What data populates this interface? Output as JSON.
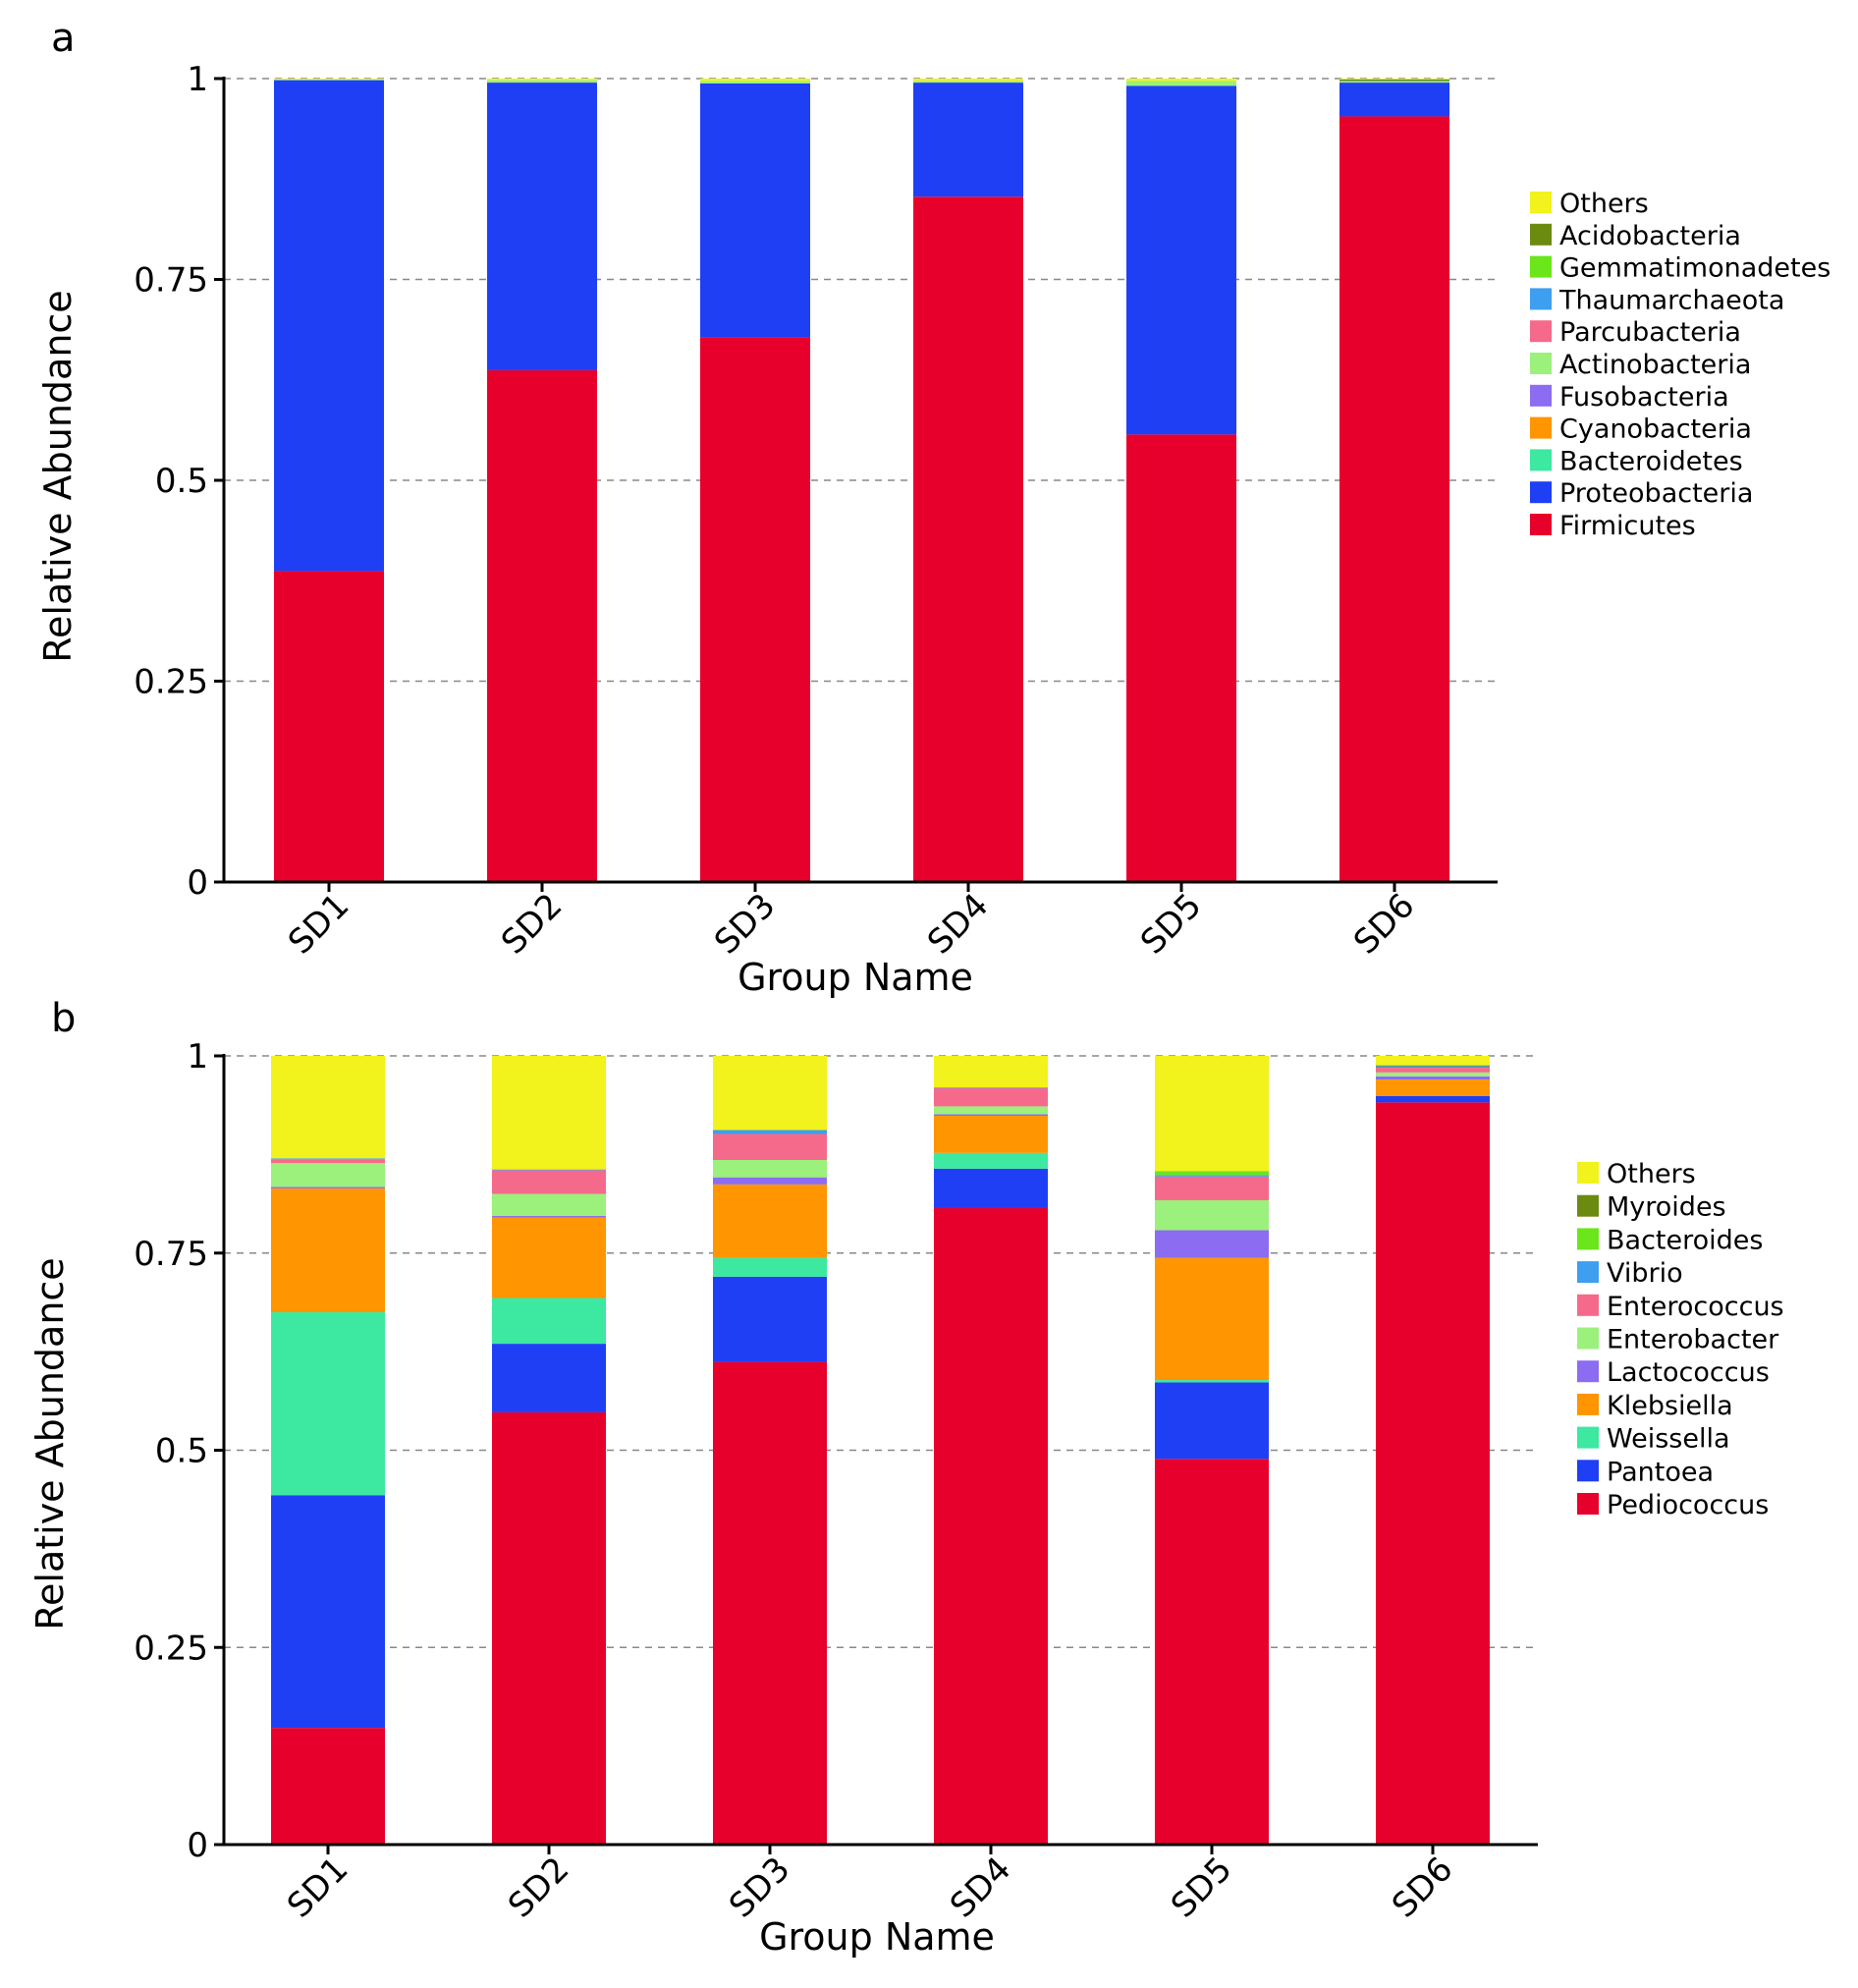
{
  "chart_data": [
    {
      "type": "bar",
      "stacked": true,
      "panel_label": "a",
      "xlabel": "Group Name",
      "ylabel": "Relative Abundance",
      "ylim": [
        0,
        1
      ],
      "yticks": [
        "0",
        "0.25",
        "0.5",
        "0.75",
        "1"
      ],
      "grid": true,
      "legend_position": "right",
      "categories": [
        "SD1",
        "SD2",
        "SD3",
        "SD4",
        "SD5",
        "SD6"
      ],
      "series": [
        {
          "name": "Firmicutes",
          "color": "#e8002d",
          "values": [
            0.387,
            0.637,
            0.678,
            0.853,
            0.557,
            0.953
          ]
        },
        {
          "name": "Proteobacteria",
          "color": "#1f3ff5",
          "values": [
            0.611,
            0.358,
            0.316,
            0.142,
            0.434,
            0.042
          ]
        },
        {
          "name": "Bacteroidetes",
          "color": "#3de8a0",
          "values": [
            0.0,
            0.0,
            0.0,
            0.0,
            0.0,
            0.0
          ]
        },
        {
          "name": "Cyanobacteria",
          "color": "#ff9500",
          "values": [
            0.0,
            0.0,
            0.0,
            0.0,
            0.0,
            0.0
          ]
        },
        {
          "name": "Fusobacteria",
          "color": "#8c6cf0",
          "values": [
            0.0,
            0.0,
            0.0,
            0.0,
            0.0,
            0.0
          ]
        },
        {
          "name": "Actinobacteria",
          "color": "#9cf07c",
          "values": [
            0.001,
            0.003,
            0.003,
            0.002,
            0.006,
            0.002
          ]
        },
        {
          "name": "Parcubacteria",
          "color": "#f56a8a",
          "values": [
            0.0,
            0.0,
            0.0,
            0.0,
            0.0,
            0.0
          ]
        },
        {
          "name": "Thaumarchaeota",
          "color": "#3e9ef0",
          "values": [
            0.0,
            0.0,
            0.0,
            0.0,
            0.0,
            0.0
          ]
        },
        {
          "name": "Gemmatimonadetes",
          "color": "#6ae61a",
          "values": [
            0.0,
            0.0,
            0.0,
            0.0,
            0.0,
            0.0
          ]
        },
        {
          "name": "Acidobacteria",
          "color": "#6b8a10",
          "values": [
            0.0,
            0.0,
            0.0,
            0.0,
            0.0,
            0.002
          ]
        },
        {
          "name": "Others",
          "color": "#f2f21c",
          "values": [
            0.001,
            0.002,
            0.003,
            0.003,
            0.003,
            0.001
          ]
        }
      ]
    },
    {
      "type": "bar",
      "stacked": true,
      "panel_label": "b",
      "xlabel": "Group Name",
      "ylabel": "Relative Abundance",
      "ylim": [
        0,
        1
      ],
      "yticks": [
        "0",
        "0.25",
        "0.5",
        "0.75",
        "1"
      ],
      "grid": true,
      "legend_position": "right",
      "categories": [
        "SD1",
        "SD2",
        "SD3",
        "SD4",
        "SD5",
        "SD6"
      ],
      "series": [
        {
          "name": "Pediococcus",
          "color": "#e8002d",
          "values": [
            0.148,
            0.548,
            0.612,
            0.807,
            0.489,
            0.941
          ]
        },
        {
          "name": "Pantoea",
          "color": "#1f3ff5",
          "values": [
            0.295,
            0.087,
            0.108,
            0.05,
            0.097,
            0.008
          ]
        },
        {
          "name": "Weissella",
          "color": "#3de8a0",
          "values": [
            0.232,
            0.058,
            0.024,
            0.02,
            0.003,
            0.0
          ]
        },
        {
          "name": "Klebsiella",
          "color": "#ff9500",
          "values": [
            0.157,
            0.102,
            0.093,
            0.047,
            0.155,
            0.021
          ]
        },
        {
          "name": "Lactococcus",
          "color": "#8c6cf0",
          "values": [
            0.002,
            0.002,
            0.009,
            0.002,
            0.035,
            0.004
          ]
        },
        {
          "name": "Enterobacter",
          "color": "#9cf07c",
          "values": [
            0.03,
            0.028,
            0.022,
            0.01,
            0.038,
            0.005
          ]
        },
        {
          "name": "Enterococcus",
          "color": "#f56a8a",
          "values": [
            0.005,
            0.03,
            0.033,
            0.023,
            0.03,
            0.006
          ]
        },
        {
          "name": "Vibrio",
          "color": "#3e9ef0",
          "values": [
            0.001,
            0.001,
            0.005,
            0.001,
            0.002,
            0.002
          ]
        },
        {
          "name": "Bacteroides",
          "color": "#6ae61a",
          "values": [
            0.0,
            0.0,
            0.0,
            0.0,
            0.005,
            0.0
          ]
        },
        {
          "name": "Myroides",
          "color": "#6b8a10",
          "values": [
            0.0,
            0.0,
            0.0,
            0.0,
            0.0,
            0.001
          ]
        },
        {
          "name": "Others",
          "color": "#f2f21c",
          "values": [
            0.13,
            0.144,
            0.094,
            0.04,
            0.146,
            0.012
          ]
        }
      ]
    }
  ]
}
